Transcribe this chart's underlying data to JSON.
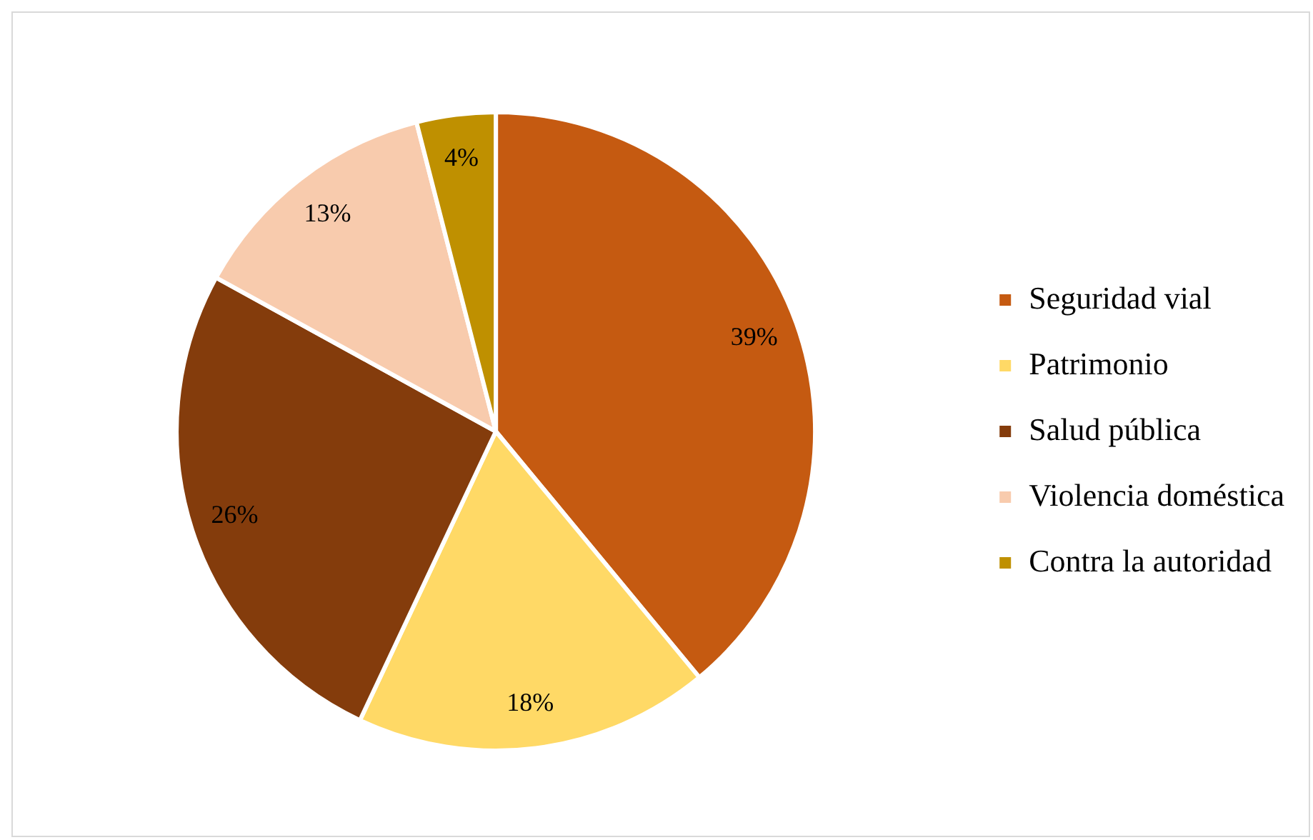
{
  "chart_data": {
    "type": "pie",
    "categories": [
      "Seguridad vial",
      "Patrimonio",
      "Salud pública",
      "Violencia doméstica",
      "Contra la autoridad"
    ],
    "values": [
      39,
      18,
      26,
      13,
      4
    ],
    "colors": [
      "#c55a11",
      "#ffd966",
      "#843c0c",
      "#f8cbad",
      "#bf9000"
    ],
    "value_labels": [
      "39%",
      "18%",
      "26%",
      "13%",
      "4%"
    ],
    "legend": "right"
  }
}
